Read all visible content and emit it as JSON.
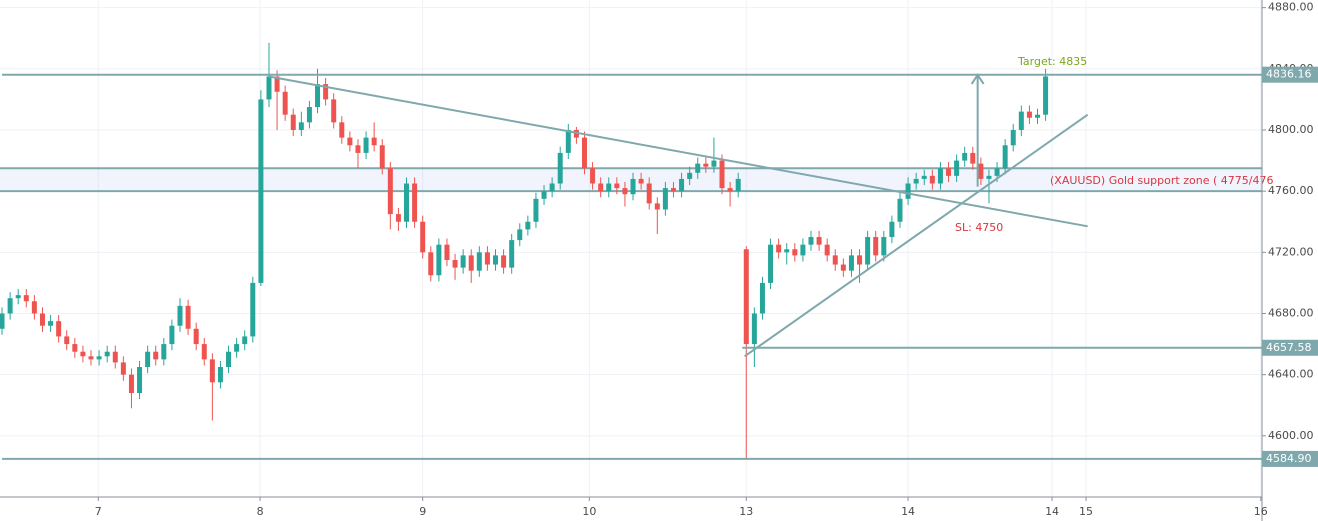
{
  "chart_data": {
    "type": "candlestick",
    "open": [
      4670,
      4680,
      4690,
      4692,
      4688,
      4680,
      4672,
      4675,
      4665,
      4660,
      4655,
      4652,
      4650,
      4652,
      4655,
      4648,
      4640,
      4628,
      4645,
      4655,
      4650,
      4660,
      4672,
      4685,
      4670,
      4660,
      4650,
      4635,
      4645,
      4655,
      4660,
      4665,
      4700,
      4820,
      4835,
      4825,
      4810,
      4800,
      4805,
      4815,
      4830,
      4820,
      4805,
      4795,
      4790,
      4785,
      4795,
      4790,
      4775,
      4745,
      4740,
      4765,
      4740,
      4720,
      4705,
      4725,
      4715,
      4710,
      4718,
      4708,
      4720,
      4712,
      4718,
      4710,
      4728,
      4735,
      4740,
      4755,
      4760,
      4765,
      4785,
      4800,
      4795,
      4775,
      4765,
      4760,
      4765,
      4762,
      4758,
      4768,
      4765,
      4752,
      4748,
      4762,
      4760,
      4768,
      4772,
      4778,
      4776,
      4780,
      4762,
      4760,
      4722,
      4660,
      4680,
      4700,
      4725,
      4720,
      4722,
      4718,
      4725,
      4730,
      4725,
      4718,
      4712,
      4708,
      4718,
      4712,
      4730,
      4718,
      4730,
      4740,
      4755,
      4765,
      4768,
      4770,
      4765,
      4775,
      4770,
      4780,
      4785,
      4778,
      4768,
      4770,
      4775,
      4790,
      4800,
      4812,
      4808,
      4810
    ],
    "high": [
      4684,
      4694,
      4696,
      4696,
      4692,
      4684,
      4679,
      4679,
      4669,
      4664,
      4659,
      4656,
      4656,
      4659,
      4659,
      4652,
      4644,
      4649,
      4659,
      4659,
      4664,
      4676,
      4690,
      4689,
      4674,
      4664,
      4654,
      4649,
      4659,
      4664,
      4669,
      4704,
      4826,
      4857,
      4839,
      4829,
      4814,
      4812,
      4819,
      4840,
      4834,
      4824,
      4809,
      4799,
      4794,
      4799,
      4805,
      4794,
      4779,
      4749,
      4769,
      4769,
      4744,
      4724,
      4729,
      4729,
      4719,
      4722,
      4722,
      4724,
      4724,
      4722,
      4722,
      4732,
      4739,
      4744,
      4759,
      4764,
      4769,
      4789,
      4804,
      4802,
      4799,
      4779,
      4769,
      4769,
      4769,
      4766,
      4772,
      4772,
      4769,
      4756,
      4766,
      4766,
      4772,
      4776,
      4782,
      4782,
      4795,
      4784,
      4766,
      4772,
      4724,
      4684,
      4704,
      4729,
      4729,
      4726,
      4726,
      4729,
      4734,
      4734,
      4729,
      4722,
      4716,
      4722,
      4722,
      4734,
      4734,
      4734,
      4744,
      4759,
      4769,
      4772,
      4774,
      4774,
      4779,
      4779,
      4784,
      4789,
      4789,
      4782,
      4774,
      4779,
      4794,
      4804,
      4816,
      4816,
      4814,
      4840
    ],
    "low": [
      4666,
      4676,
      4686,
      4684,
      4676,
      4668,
      4668,
      4661,
      4656,
      4651,
      4648,
      4646,
      4646,
      4648,
      4644,
      4636,
      4618,
      4624,
      4641,
      4646,
      4646,
      4656,
      4668,
      4666,
      4656,
      4646,
      4610,
      4631,
      4641,
      4651,
      4656,
      4661,
      4698,
      4815,
      4800,
      4806,
      4796,
      4796,
      4801,
      4811,
      4816,
      4801,
      4791,
      4786,
      4775,
      4781,
      4786,
      4771,
      4735,
      4734,
      4736,
      4736,
      4716,
      4701,
      4701,
      4711,
      4702,
      4706,
      4700,
      4704,
      4708,
      4708,
      4706,
      4706,
      4724,
      4731,
      4736,
      4751,
      4756,
      4761,
      4781,
      4791,
      4771,
      4761,
      4756,
      4756,
      4758,
      4750,
      4754,
      4761,
      4748,
      4732,
      4744,
      4756,
      4756,
      4764,
      4768,
      4772,
      4772,
      4758,
      4750,
      4756,
      4585,
      4645,
      4676,
      4696,
      4716,
      4712,
      4714,
      4714,
      4721,
      4721,
      4714,
      4708,
      4704,
      4704,
      4700,
      4708,
      4714,
      4714,
      4726,
      4736,
      4751,
      4761,
      4764,
      4761,
      4761,
      4766,
      4766,
      4776,
      4774,
      4764,
      4752,
      4766,
      4771,
      4786,
      4796,
      4804,
      4804,
      4806
    ],
    "close": [
      4680,
      4690,
      4692,
      4688,
      4680,
      4672,
      4675,
      4665,
      4660,
      4655,
      4652,
      4650,
      4652,
      4655,
      4648,
      4640,
      4628,
      4645,
      4655,
      4650,
      4660,
      4672,
      4685,
      4670,
      4660,
      4650,
      4635,
      4645,
      4655,
      4660,
      4665,
      4700,
      4820,
      4835,
      4825,
      4810,
      4800,
      4805,
      4815,
      4830,
      4820,
      4805,
      4795,
      4790,
      4785,
      4795,
      4790,
      4775,
      4745,
      4740,
      4765,
      4740,
      4720,
      4705,
      4725,
      4715,
      4710,
      4718,
      4708,
      4720,
      4712,
      4718,
      4710,
      4728,
      4735,
      4740,
      4755,
      4760,
      4765,
      4785,
      4800,
      4795,
      4775,
      4765,
      4760,
      4765,
      4762,
      4758,
      4768,
      4765,
      4752,
      4748,
      4762,
      4760,
      4768,
      4772,
      4778,
      4776,
      4780,
      4762,
      4760,
      4768,
      4660,
      4680,
      4700,
      4725,
      4720,
      4722,
      4718,
      4725,
      4730,
      4725,
      4718,
      4712,
      4708,
      4718,
      4712,
      4730,
      4718,
      4730,
      4740,
      4755,
      4765,
      4768,
      4770,
      4765,
      4775,
      4770,
      4780,
      4785,
      4778,
      4768,
      4770,
      4775,
      4790,
      4800,
      4812,
      4808,
      4810,
      4835
    ],
    "up_color": "#26a69a",
    "down_color": "#ef5350",
    "xlim": [
      -0.25,
      155.75
    ],
    "xticks": [
      {
        "value": 11.9,
        "label": "7"
      },
      {
        "value": 31.9,
        "label": "8"
      },
      {
        "value": 52,
        "label": "9"
      },
      {
        "value": 72.6,
        "label": "10"
      },
      {
        "value": 92,
        "label": "13"
      },
      {
        "value": 112,
        "label": "14"
      },
      {
        "value": 129.8,
        "label": "14"
      },
      {
        "value": 134,
        "label": "15"
      },
      {
        "value": 155.6,
        "label": "16"
      }
    ],
    "ylim": [
      4560,
      4885
    ],
    "yticks": [
      {
        "value": 4600,
        "label": "4600.00"
      },
      {
        "value": 4640,
        "label": "4640.00"
      },
      {
        "value": 4680,
        "label": "4680.00"
      },
      {
        "value": 4720,
        "label": "4720.00"
      },
      {
        "value": 4760,
        "label": "4760.00"
      },
      {
        "value": 4800,
        "label": "4800.00"
      },
      {
        "value": 4840,
        "label": "4840.00"
      },
      {
        "value": 4880,
        "label": "4880.00"
      }
    ],
    "grid": true,
    "line_color": "#7fa8ad",
    "price_lines": [
      4836.16,
      4657.58,
      {
        "value": 4584.9,
        "label": "4584.90"
      }
    ],
    "price_line_starts": [
      0,
      91.5,
      0
    ],
    "zone": {
      "range": [
        4760,
        4775
      ],
      "label": "(XAUUSD) Gold support zone ( 4775/476"
    },
    "trend_lines": [
      {
        "x": [
          33,
          134.2
        ],
        "y": [
          4835,
          4737
        ]
      },
      {
        "x": [
          91.8,
          134.2
        ],
        "y": [
          4652,
          4810
        ]
      }
    ],
    "target_arrow": {
      "x": 120.6,
      "from": 4763,
      "to": 4836
    },
    "target_label": "Target: 4835",
    "stop_label": "SL: 4750"
  }
}
